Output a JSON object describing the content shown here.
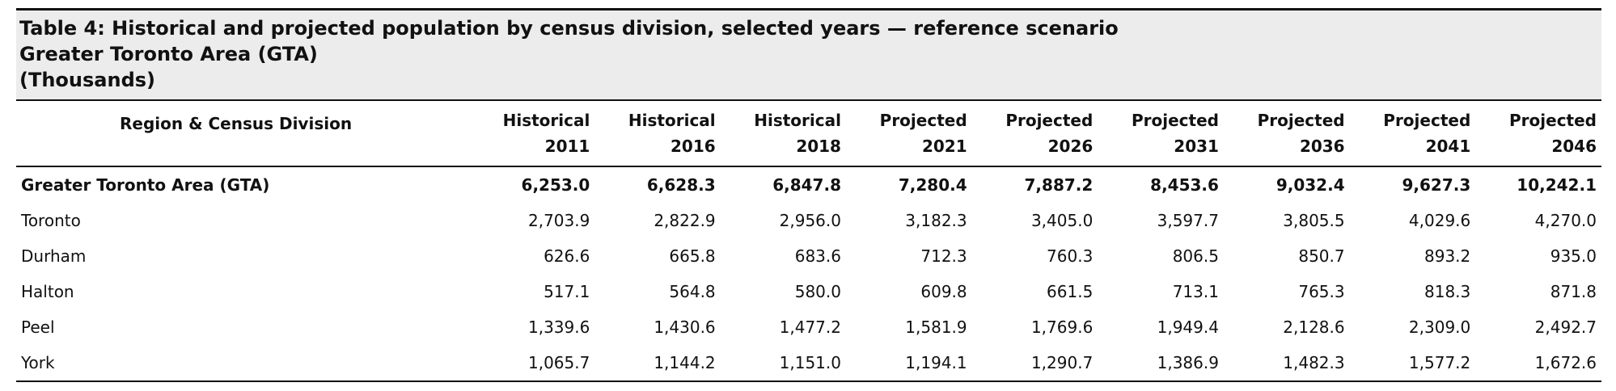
{
  "caption": {
    "line1": "Table 4: Historical and projected population by census division, selected years — reference scenario",
    "line2": "Greater Toronto Area (GTA)",
    "line3": "(Thousands)"
  },
  "header": {
    "region_label": "Region & Census Division",
    "columns": [
      {
        "type": "Historical",
        "year": "2011"
      },
      {
        "type": "Historical",
        "year": "2016"
      },
      {
        "type": "Historical",
        "year": "2018"
      },
      {
        "type": "Projected",
        "year": "2021"
      },
      {
        "type": "Projected",
        "year": "2026"
      },
      {
        "type": "Projected",
        "year": "2031"
      },
      {
        "type": "Projected",
        "year": "2036"
      },
      {
        "type": "Projected",
        "year": "2041"
      },
      {
        "type": "Projected",
        "year": "2046"
      }
    ]
  },
  "rows": [
    {
      "name": "Greater Toronto Area (GTA)",
      "values": [
        "6,253.0",
        "6,628.3",
        "6,847.8",
        "7,280.4",
        "7,887.2",
        "8,453.6",
        "9,032.4",
        "9,627.3",
        "10,242.1"
      ]
    },
    {
      "name": "Toronto",
      "values": [
        "2,703.9",
        "2,822.9",
        "2,956.0",
        "3,182.3",
        "3,405.0",
        "3,597.7",
        "3,805.5",
        "4,029.6",
        "4,270.0"
      ]
    },
    {
      "name": "Durham",
      "values": [
        "626.6",
        "665.8",
        "683.6",
        "712.3",
        "760.3",
        "806.5",
        "850.7",
        "893.2",
        "935.0"
      ]
    },
    {
      "name": "Halton",
      "values": [
        "517.1",
        "564.8",
        "580.0",
        "609.8",
        "661.5",
        "713.1",
        "765.3",
        "818.3",
        "871.8"
      ]
    },
    {
      "name": "Peel",
      "values": [
        "1,339.6",
        "1,430.6",
        "1,477.2",
        "1,581.9",
        "1,769.6",
        "1,949.4",
        "2,128.6",
        "2,309.0",
        "2,492.7"
      ]
    },
    {
      "name": "York",
      "values": [
        "1,065.7",
        "1,144.2",
        "1,151.0",
        "1,194.1",
        "1,290.7",
        "1,386.9",
        "1,482.3",
        "1,577.2",
        "1,672.6"
      ]
    }
  ]
}
